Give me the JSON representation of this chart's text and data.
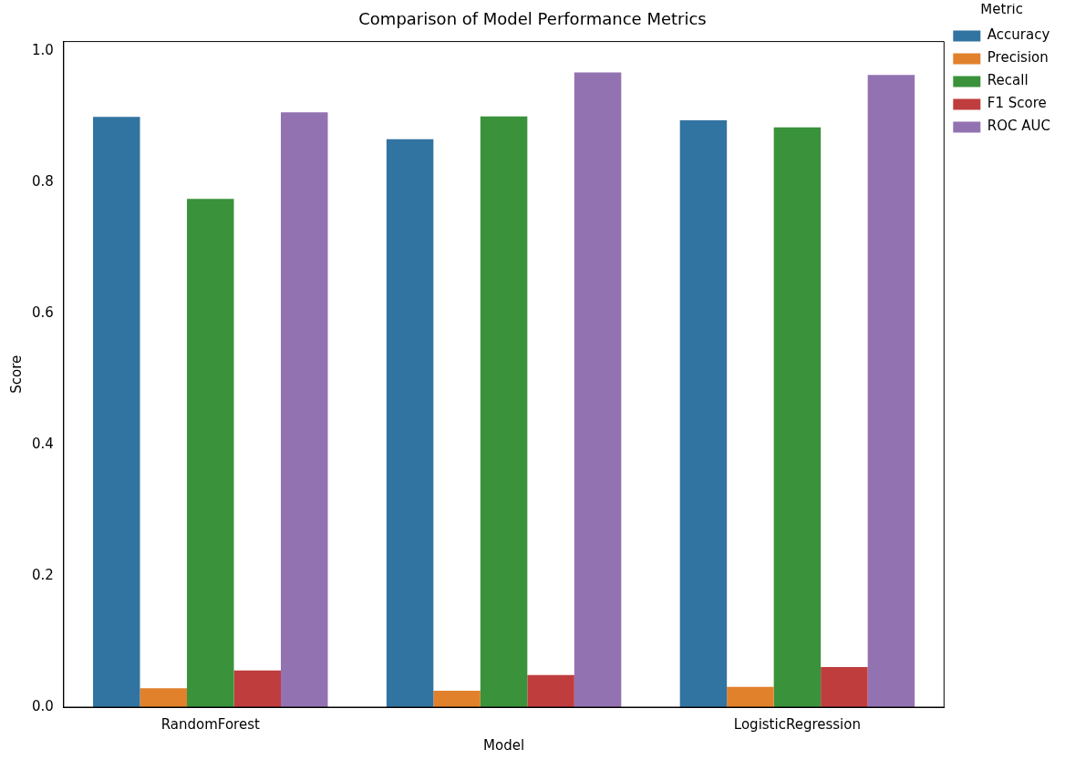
{
  "chart_data": {
    "type": "bar",
    "title": "Comparison of Model Performance Metrics",
    "xlabel": "Model",
    "ylabel": "Score",
    "legend_title": "Metric",
    "categories": [
      "RandomForest",
      null,
      "LogisticRegression"
    ],
    "series": [
      {
        "name": "Accuracy",
        "color": "#3274a1",
        "values": [
          0.9,
          0.866,
          0.895
        ]
      },
      {
        "name": "Precision",
        "color": "#e1812c",
        "values": [
          0.029,
          0.025,
          0.031
        ]
      },
      {
        "name": "Recall",
        "color": "#3a923a",
        "values": [
          0.775,
          0.901,
          0.884
        ]
      },
      {
        "name": "F1 Score",
        "color": "#c03d3e",
        "values": [
          0.056,
          0.049,
          0.061
        ]
      },
      {
        "name": "ROC AUC",
        "color": "#9372b2",
        "values": [
          0.907,
          0.968,
          0.964
        ]
      }
    ],
    "ylim": [
      0,
      1.015
    ],
    "yticks": [
      {
        "value": 0,
        "label": "0.0"
      },
      {
        "value": 0.2,
        "label": "0.2"
      },
      {
        "value": 0.4,
        "label": "0.4"
      },
      {
        "value": 0.6,
        "label": "0.6"
      },
      {
        "value": 0.8,
        "label": "0.8"
      },
      {
        "value": 1,
        "label": "1.0"
      }
    ],
    "grid": false,
    "legend": "top right"
  }
}
